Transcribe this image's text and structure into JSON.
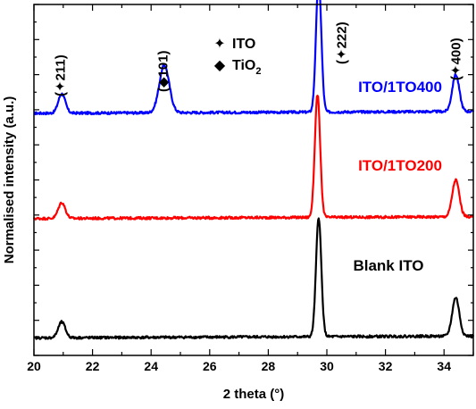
{
  "chart_data": {
    "type": "line",
    "title": "",
    "xlabel": "2 theta (°)",
    "ylabel": "Normalised intensity (a.u.)",
    "xlim": [
      20,
      35
    ],
    "xticks": [
      20,
      22,
      24,
      26,
      28,
      30,
      32,
      34
    ],
    "ylim": [
      0,
      10
    ],
    "y_tick_labels": false,
    "grid": false,
    "legend": {
      "placement": "top-center",
      "entries": [
        {
          "marker": "✦",
          "label": "ITO"
        },
        {
          "marker": "◆",
          "label": "TiO",
          "subscript": "2"
        }
      ]
    },
    "peak_annotations": [
      {
        "x": 20.9,
        "text": "(✦211)"
      },
      {
        "x": 24.4,
        "text": "(◆101)"
      },
      {
        "x": 30.5,
        "text": "(✦222)"
      },
      {
        "x": 34.4,
        "text": "(✦400)"
      }
    ],
    "series": [
      {
        "name": "ITO/1TO400",
        "color": "#0000ff",
        "baseline": 6.9,
        "peaks": [
          {
            "x": 20.95,
            "height": 0.55,
            "width": 0.12
          },
          {
            "x": 24.45,
            "height": 1.35,
            "width": 0.17
          },
          {
            "x": 29.72,
            "height": 3.8,
            "width": 0.09
          },
          {
            "x": 34.4,
            "height": 1.05,
            "width": 0.12
          }
        ]
      },
      {
        "name": "ITO/1TO200",
        "color": "#ff0000",
        "baseline": 3.9,
        "peaks": [
          {
            "x": 20.95,
            "height": 0.45,
            "width": 0.12
          },
          {
            "x": 29.68,
            "height": 3.5,
            "width": 0.09
          },
          {
            "x": 34.4,
            "height": 1.05,
            "width": 0.12
          }
        ]
      },
      {
        "name": "Blank ITO",
        "color": "#000000",
        "baseline": 0.5,
        "peaks": [
          {
            "x": 20.95,
            "height": 0.45,
            "width": 0.12
          },
          {
            "x": 29.72,
            "height": 3.4,
            "width": 0.09
          },
          {
            "x": 34.4,
            "height": 1.1,
            "width": 0.12
          }
        ]
      }
    ],
    "series_label_positions": [
      "right",
      "right",
      "right"
    ]
  }
}
